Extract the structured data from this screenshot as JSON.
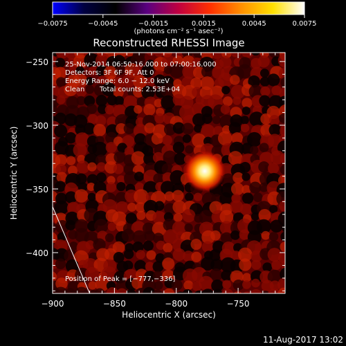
{
  "chart_data": {
    "type": "heatmap",
    "title": "Reconstructed RHESSI Image",
    "xlabel": "Heliocentric X (arcsec)",
    "ylabel": "Heliocentric Y (arcsec)",
    "xlim": [
      -900,
      -712
    ],
    "ylim": [
      -432,
      -243
    ],
    "x_ticks": [
      -900,
      -850,
      -800,
      -750
    ],
    "x_tick_labels": [
      "−900",
      "−850",
      "−800",
      "−750"
    ],
    "y_ticks": [
      -250,
      -300,
      -350,
      -400
    ],
    "y_tick_labels": [
      "−250",
      "−300",
      "−350",
      "−400"
    ],
    "colorbar": {
      "range": [
        -0.0075,
        0.0075
      ],
      "ticks": [
        -0.0075,
        -0.0045,
        -0.0015,
        0.0015,
        0.0045,
        0.0075
      ],
      "tick_labels": [
        "−0.0075",
        "−0.0045",
        "−0.0015",
        "0.0015",
        "0.0045",
        "0.0075"
      ],
      "unit_label": "(photons cm⁻² s⁻¹ asec⁻²)",
      "colors": [
        "#0000ff",
        "#000040",
        "#000000",
        "#5a0080",
        "#c00040",
        "#ff3000",
        "#ff9000",
        "#ffe000",
        "#ffffff"
      ]
    },
    "peak": {
      "x": -777,
      "y": -336
    },
    "source_peak_value": 0.0075,
    "annotations": {
      "time": "25-Nov-2014 06:50:16.000 to 07:00:16.000",
      "detectors": "Detectors: 3F 6F 9F, Att 0",
      "energy": "Energy Range: 6.0 − 12.0 keV",
      "method": "Clean",
      "counts": "Total counts: 2.53E+04",
      "peak": "Position of Peak = [−777,−336]"
    },
    "limb_line": [
      [
        -900,
        -364
      ],
      [
        -870,
        -432
      ]
    ],
    "grid": false
  },
  "timestamp": "11-Aug-2017 13:02"
}
